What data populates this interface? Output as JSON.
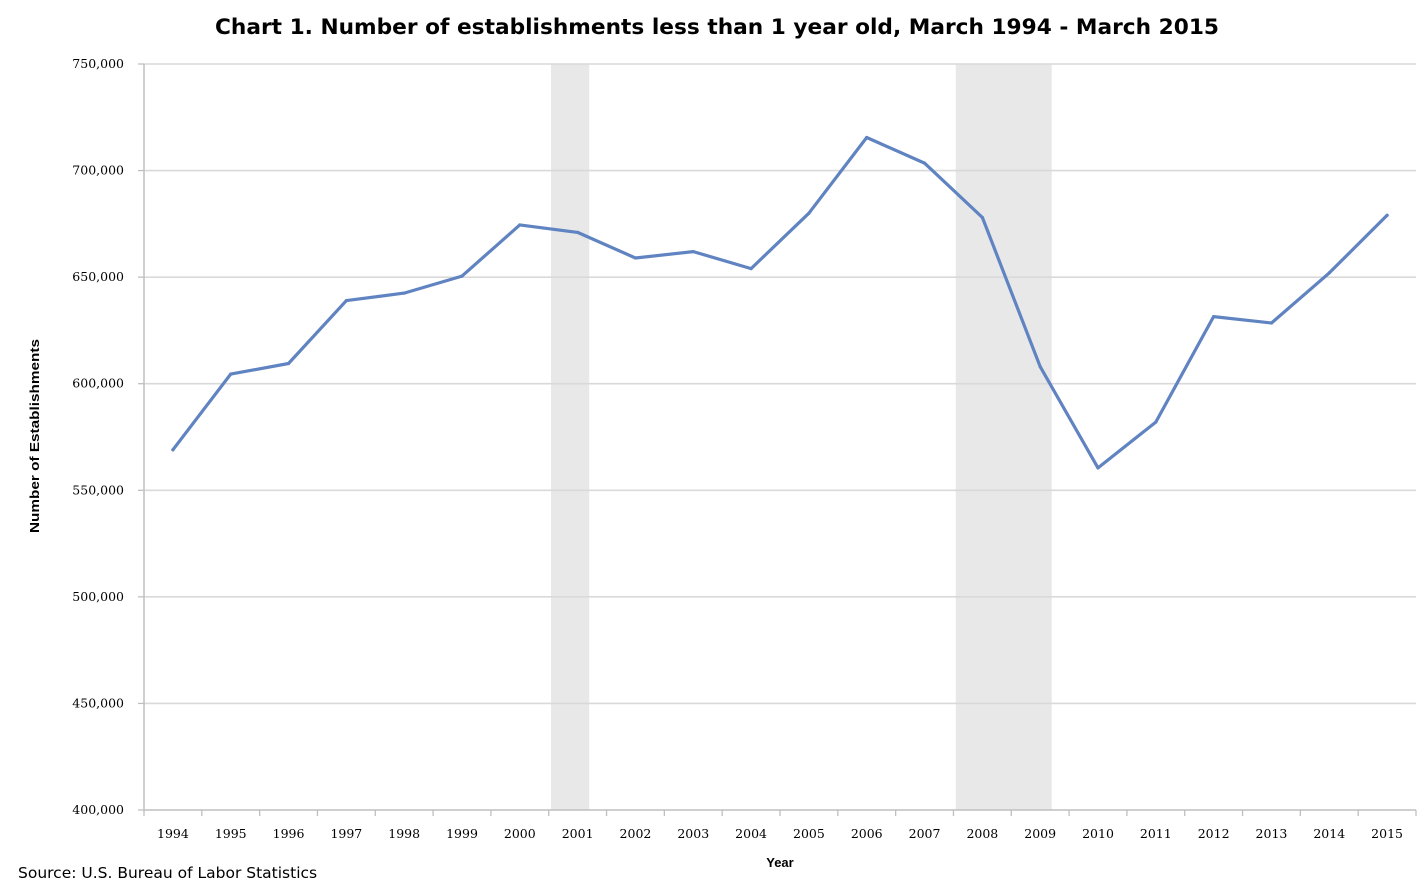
{
  "chart_data": {
    "type": "line",
    "title": "Chart 1. Number of establishments less than 1 year old, March 1994 - March 2015",
    "xlabel": "Year",
    "ylabel": "Number of Establishments",
    "source": "Source: U.S. Bureau of Labor Statistics",
    "ylim": [
      400000,
      750000
    ],
    "yticks": [
      400000,
      450000,
      500000,
      550000,
      600000,
      650000,
      700000,
      750000
    ],
    "ytick_labels": [
      "400,000",
      "450,000",
      "500,000",
      "550,000",
      "600,000",
      "650,000",
      "700,000",
      "750,000"
    ],
    "grid": "horizontal",
    "categories": [
      "1994",
      "1995",
      "1996",
      "1997",
      "1998",
      "1999",
      "2000",
      "2001",
      "2002",
      "2003",
      "2004",
      "2005",
      "2006",
      "2007",
      "2008",
      "2009",
      "2010",
      "2011",
      "2012",
      "2013",
      "2014",
      "2015"
    ],
    "series": [
      {
        "values": [
          569000,
          604500,
          609500,
          639000,
          642500,
          650500,
          674500,
          671000,
          659000,
          662000,
          654000,
          680000,
          715500,
          703500,
          678000,
          608000,
          560500,
          582000,
          631500,
          628500,
          652000,
          679000
        ]
      }
    ],
    "recession_bands": [
      {
        "start": "2001",
        "end": "2001"
      },
      {
        "start": "2008",
        "end": "2009"
      }
    ],
    "colors": {
      "line": "#6083c1",
      "band": "#e8e8e8",
      "grid": "#d9d9d9",
      "axis": "#bfbfbf"
    }
  }
}
